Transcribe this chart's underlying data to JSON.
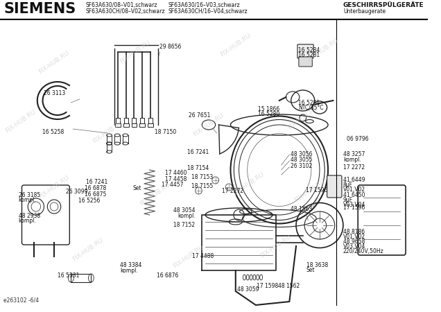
{
  "title_brand": "SIEMENS",
  "model_line1_col1": "SF63A630/08–V01,schwarz",
  "model_line2_col1": "SF63A630CH/08–V02,schwarz",
  "model_line1_col2": "SF63A630/16–V03,schwarz",
  "model_line2_col2": "SF63A630CH/16–V04,schwarz",
  "title_right1": "GESCHIRRSPÜLGERÄTE",
  "title_right2": "Unterbaugerate",
  "footer_code": "e263102 -6/4",
  "watermark": "FIX-HUB.RU",
  "bg_color": "#ffffff"
}
